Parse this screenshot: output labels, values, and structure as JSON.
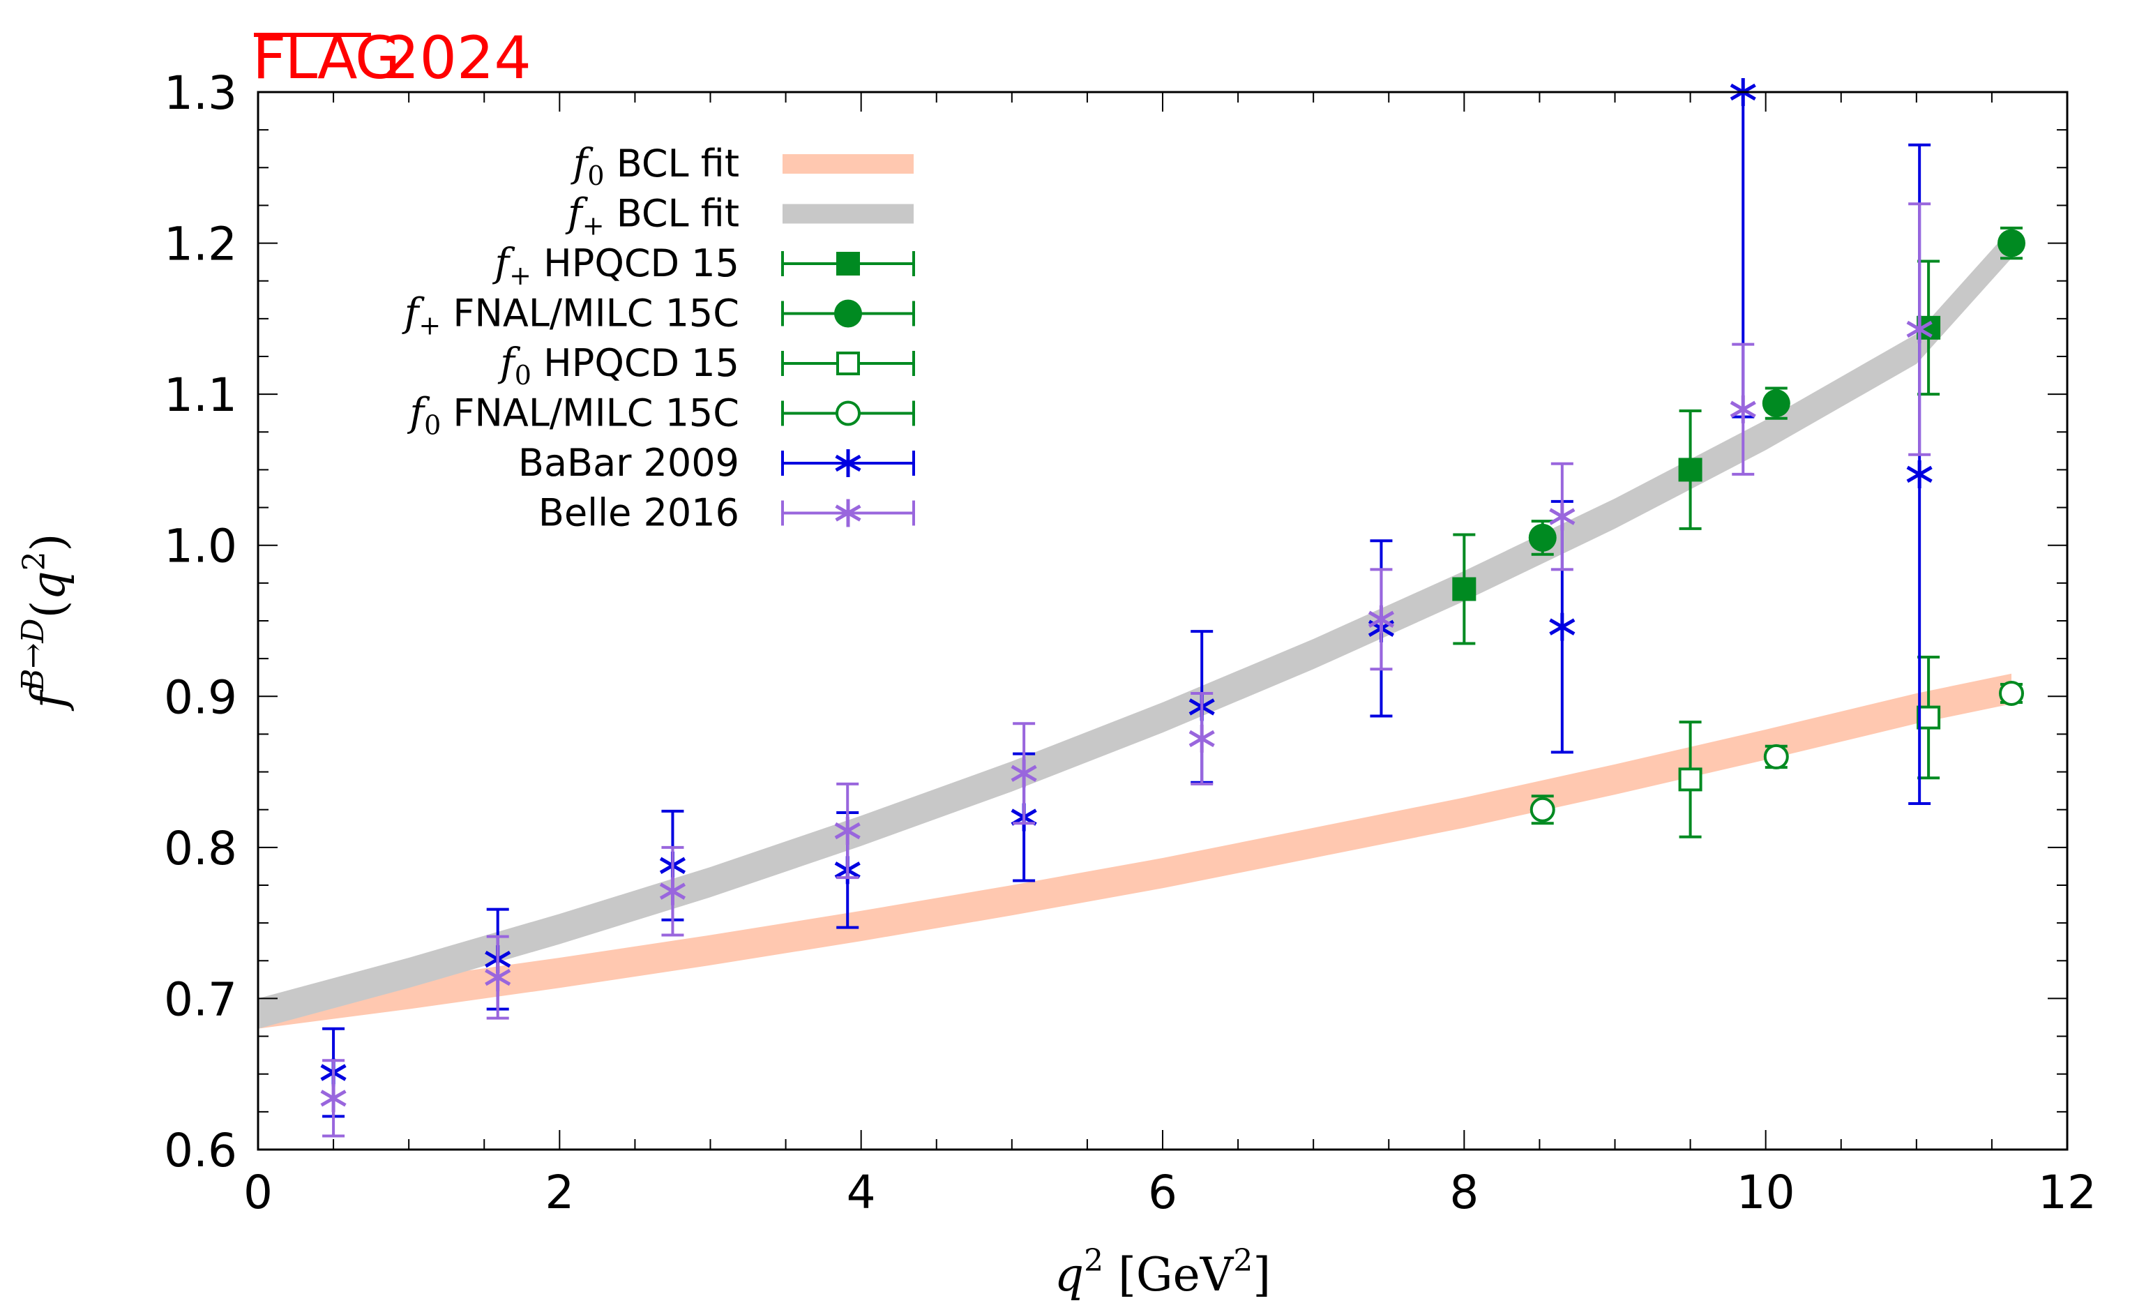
{
  "brand": {
    "name": "FLAG",
    "year": "2024",
    "color": "#ff0000"
  },
  "chart_data": {
    "type": "scatter",
    "title": "",
    "xlabel_parts": {
      "var": "q",
      "sup": "2",
      "unit": " [GeV",
      "unit_sup": "2",
      "unit_end": "]"
    },
    "ylabel_parts": {
      "var": "f",
      "sup": "B→D",
      "open": "(",
      "arg": "q",
      "arg_sup": "2",
      "close": ")"
    },
    "xlim": [
      0,
      12
    ],
    "ylim": [
      0.6,
      1.3
    ],
    "xticks": [
      0,
      2,
      4,
      6,
      8,
      10,
      12
    ],
    "xtick_labels": [
      "0",
      "2",
      "4",
      "6",
      "8",
      "10",
      "12"
    ],
    "yticks": [
      0.6,
      0.7,
      0.8,
      0.9,
      1.0,
      1.1,
      1.2,
      1.3
    ],
    "ytick_labels": [
      "0.6",
      "0.7",
      "0.8",
      "0.9",
      "1.0",
      "1.1",
      "1.2",
      "1.3"
    ],
    "x_minor_step": 0.5,
    "y_minor_step": 0.025,
    "grid": false,
    "legend_position": "top-left",
    "bands": [
      {
        "name": "f0 BCL fit",
        "math": "f",
        "sub": "0",
        "text": " BCL fit",
        "color": "#ffc8b0",
        "x": [
          0,
          1,
          2,
          3,
          4,
          5,
          6,
          7,
          8,
          9,
          10,
          11,
          11.63
        ],
        "center": [
          0.69,
          0.703,
          0.717,
          0.732,
          0.748,
          0.765,
          0.783,
          0.803,
          0.823,
          0.845,
          0.868,
          0.892,
          0.905
        ],
        "half_width": 0.01
      },
      {
        "name": "f+ BCL fit",
        "math": "f",
        "sub": "+",
        "text": " BCL fit",
        "color": "#c8c8c8",
        "x": [
          0,
          1,
          2,
          3,
          4,
          5,
          6,
          7,
          8,
          9,
          10,
          11,
          11.63
        ],
        "center": [
          0.69,
          0.717,
          0.746,
          0.777,
          0.811,
          0.847,
          0.886,
          0.928,
          0.973,
          1.021,
          1.073,
          1.13,
          1.2
        ],
        "half_width": 0.01
      }
    ],
    "series": [
      {
        "name": "f+ HPQCD 15",
        "math": "f",
        "sub": "+",
        "text": " HPQCD 15",
        "color": "#008a21",
        "marker": "square-filled",
        "points": [
          {
            "x": 8.0,
            "y": 0.971,
            "err": 0.036
          },
          {
            "x": 9.5,
            "y": 1.05,
            "err": 0.039
          },
          {
            "x": 11.08,
            "y": 1.144,
            "err": 0.044
          }
        ]
      },
      {
        "name": "f+ FNAL/MILC 15C",
        "math": "f",
        "sub": "+",
        "text": " FNAL/MILC 15C",
        "color": "#008a21",
        "marker": "circle-filled",
        "points": [
          {
            "x": 8.52,
            "y": 1.005,
            "err": 0.011
          },
          {
            "x": 10.07,
            "y": 1.094,
            "err": 0.01
          },
          {
            "x": 11.63,
            "y": 1.2,
            "err": 0.01
          }
        ]
      },
      {
        "name": "f0 HPQCD 15",
        "math": "f",
        "sub": "0",
        "text": " HPQCD 15",
        "color": "#008a21",
        "marker": "square-open",
        "points": [
          {
            "x": 9.5,
            "y": 0.845,
            "err": 0.038
          },
          {
            "x": 11.08,
            "y": 0.886,
            "err": 0.04
          }
        ]
      },
      {
        "name": "f0 FNAL/MILC 15C",
        "math": "f",
        "sub": "0",
        "text": " FNAL/MILC 15C",
        "color": "#008a21",
        "marker": "circle-open",
        "points": [
          {
            "x": 8.52,
            "y": 0.825,
            "err": 0.009
          },
          {
            "x": 10.07,
            "y": 0.86,
            "err": 0.007
          },
          {
            "x": 11.63,
            "y": 0.902,
            "err": 0.006
          }
        ]
      },
      {
        "name": "BaBar 2009",
        "math": "",
        "sub": "",
        "text": "BaBar 2009",
        "color": "#0000e0",
        "marker": "star",
        "points": [
          {
            "x": 0.5,
            "y": 0.651,
            "err": 0.029
          },
          {
            "x": 1.59,
            "y": 0.726,
            "err": 0.033
          },
          {
            "x": 2.75,
            "y": 0.788,
            "err": 0.036
          },
          {
            "x": 3.91,
            "y": 0.785,
            "err": 0.038
          },
          {
            "x": 5.08,
            "y": 0.82,
            "err": 0.042
          },
          {
            "x": 6.26,
            "y": 0.893,
            "err": 0.05
          },
          {
            "x": 7.45,
            "y": 0.945,
            "err": 0.058
          },
          {
            "x": 8.65,
            "y": 0.946,
            "err": 0.083
          },
          {
            "x": 11.02,
            "y": 1.047,
            "err": 0.218
          },
          {
            "x": 9.85,
            "y": 1.3,
            "err": 0.215
          }
        ]
      },
      {
        "name": "Belle 2016",
        "math": "",
        "sub": "",
        "text": "Belle 2016",
        "color": "#9966dd",
        "marker": "star",
        "points": [
          {
            "x": 0.5,
            "y": 0.634,
            "err": 0.025
          },
          {
            "x": 1.59,
            "y": 0.714,
            "err": 0.027
          },
          {
            "x": 2.75,
            "y": 0.771,
            "err": 0.029
          },
          {
            "x": 3.91,
            "y": 0.811,
            "err": 0.031
          },
          {
            "x": 5.08,
            "y": 0.849,
            "err": 0.033
          },
          {
            "x": 6.26,
            "y": 0.872,
            "err": 0.03
          },
          {
            "x": 7.45,
            "y": 0.951,
            "err": 0.033
          },
          {
            "x": 8.65,
            "y": 1.019,
            "err": 0.035
          },
          {
            "x": 9.85,
            "y": 1.09,
            "err": 0.043
          },
          {
            "x": 11.02,
            "y": 1.143,
            "err": 0.083
          }
        ]
      }
    ]
  }
}
